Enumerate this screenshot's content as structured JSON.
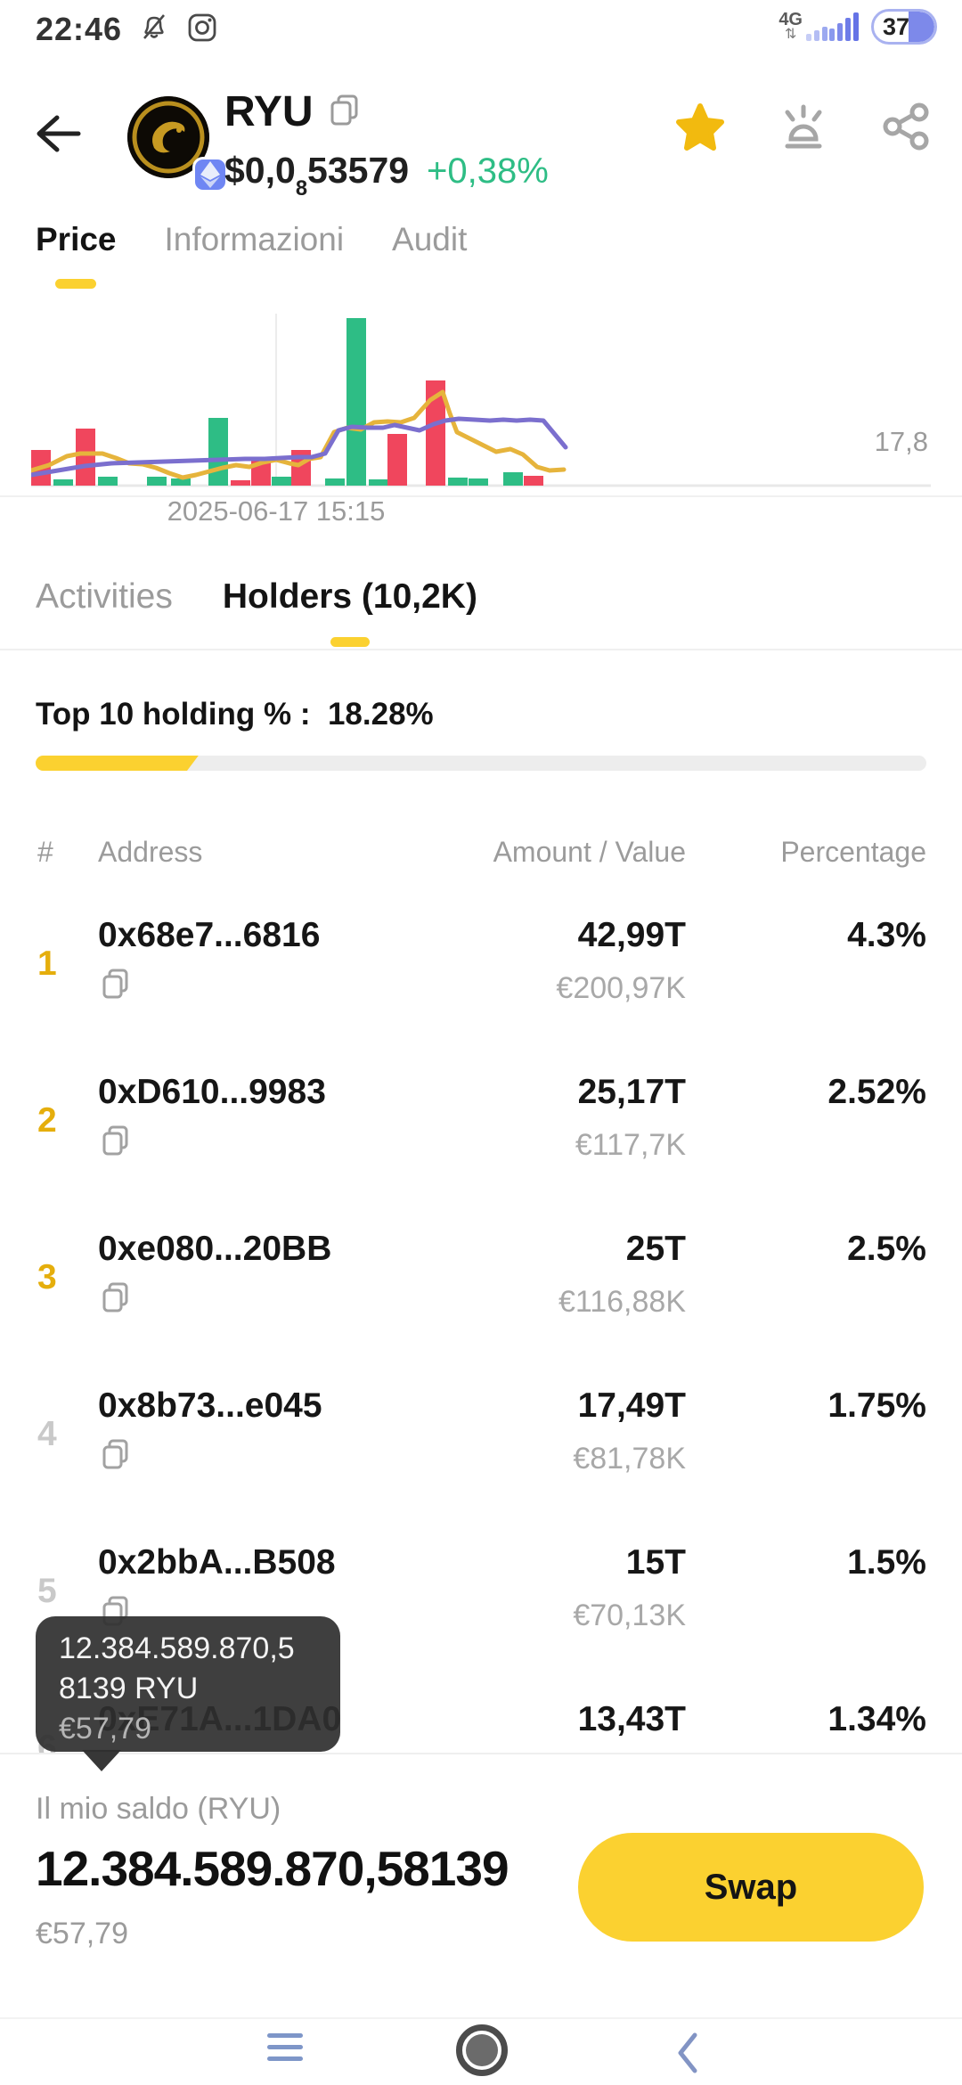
{
  "status_bar": {
    "time": "22:46",
    "network": "4G",
    "battery": "37"
  },
  "header": {
    "token_name": "RYU",
    "price_prefix": "$0,0",
    "price_sub": "8",
    "price_digits": "53579",
    "change": "+0,38%",
    "colors": {
      "change_green": "#2ebd85",
      "star_yellow": "#f2ba0f"
    }
  },
  "tabs": {
    "price": "Price",
    "info": "Informazioni",
    "audit": "Audit"
  },
  "chart_data": {
    "type": "bar",
    "timestamp_label": "2025-06-17 15:15",
    "y_axis_label": "17,8",
    "colors": {
      "red": "#f0465d",
      "green": "#2ebd85",
      "yellow": "#e6b43c",
      "purple": "#7b6fce"
    },
    "bars": [
      [
        0,
        40,
        "r"
      ],
      [
        25,
        7,
        "g"
      ],
      [
        50,
        64,
        "r"
      ],
      [
        75,
        10,
        "g"
      ],
      [
        130,
        10,
        "g"
      ],
      [
        157,
        8,
        "g"
      ],
      [
        199,
        76,
        "g"
      ],
      [
        224,
        6,
        "r"
      ],
      [
        247,
        32,
        "r"
      ],
      [
        270,
        10,
        "g"
      ],
      [
        292,
        40,
        "r"
      ],
      [
        330,
        8,
        "g"
      ],
      [
        354,
        188,
        "g"
      ],
      [
        379,
        7,
        "g"
      ],
      [
        400,
        58,
        "r"
      ],
      [
        443,
        118,
        "r"
      ],
      [
        468,
        9,
        "g"
      ],
      [
        491,
        8,
        "g"
      ],
      [
        530,
        15,
        "g"
      ],
      [
        553,
        11,
        "r"
      ]
    ],
    "lines": {
      "yellow": [
        [
          0,
          176
        ],
        [
          20,
          170
        ],
        [
          40,
          160
        ],
        [
          55,
          157
        ],
        [
          80,
          157
        ],
        [
          95,
          162
        ],
        [
          110,
          168
        ],
        [
          125,
          169
        ],
        [
          140,
          173
        ],
        [
          155,
          179
        ],
        [
          170,
          184
        ],
        [
          185,
          181
        ],
        [
          200,
          177
        ],
        [
          215,
          173
        ],
        [
          230,
          170
        ],
        [
          245,
          172
        ],
        [
          260,
          167
        ],
        [
          275,
          164
        ],
        [
          290,
          168
        ],
        [
          300,
          170
        ],
        [
          312,
          163
        ],
        [
          325,
          161
        ],
        [
          340,
          133
        ],
        [
          355,
          128
        ],
        [
          370,
          130
        ],
        [
          385,
          122
        ],
        [
          400,
          121
        ],
        [
          415,
          122
        ],
        [
          430,
          117
        ],
        [
          448,
          97
        ],
        [
          462,
          88
        ],
        [
          470,
          112
        ],
        [
          478,
          133
        ],
        [
          492,
          140
        ],
        [
          508,
          148
        ],
        [
          522,
          155
        ],
        [
          538,
          152
        ],
        [
          552,
          158
        ],
        [
          568,
          172
        ],
        [
          582,
          176
        ],
        [
          598,
          175
        ]
      ],
      "purple": [
        [
          0,
          181
        ],
        [
          30,
          176
        ],
        [
          60,
          171
        ],
        [
          90,
          168
        ],
        [
          120,
          167
        ],
        [
          150,
          166
        ],
        [
          180,
          165
        ],
        [
          210,
          164
        ],
        [
          240,
          163
        ],
        [
          262,
          163
        ],
        [
          280,
          162
        ],
        [
          300,
          161
        ],
        [
          315,
          161
        ],
        [
          330,
          157
        ],
        [
          345,
          131
        ],
        [
          360,
          127
        ],
        [
          378,
          128
        ],
        [
          395,
          128
        ],
        [
          408,
          125
        ],
        [
          422,
          128
        ],
        [
          436,
          131
        ],
        [
          452,
          124
        ],
        [
          465,
          120
        ],
        [
          480,
          118
        ],
        [
          498,
          119
        ],
        [
          515,
          120
        ],
        [
          530,
          119
        ],
        [
          545,
          120
        ],
        [
          560,
          119
        ],
        [
          575,
          120
        ],
        [
          590,
          138
        ],
        [
          600,
          150
        ]
      ]
    }
  },
  "section_tabs": {
    "activities": "Activities",
    "holders": "Holders (10,2K)"
  },
  "top10": {
    "label": "Top 10 holding % :",
    "value": "18.28%",
    "percent": 18.28,
    "bar_color": "#fbd130"
  },
  "table": {
    "headers": {
      "rank": "#",
      "address": "Address",
      "amount": "Amount / Value",
      "percentage": "Percentage"
    }
  },
  "holders": {
    "rows": [
      {
        "rank": "1",
        "rank_class": "gold",
        "address": "0x68e7...6816",
        "amount": "42,99T",
        "value": "€200,97K",
        "pct": "4.3%"
      },
      {
        "rank": "2",
        "rank_class": "gold",
        "address": "0xD610...9983",
        "amount": "25,17T",
        "value": "€117,7K",
        "pct": "2.52%"
      },
      {
        "rank": "3",
        "rank_class": "gold",
        "address": "0xe080...20BB",
        "amount": "25T",
        "value": "€116,88K",
        "pct": "2.5%"
      },
      {
        "rank": "4",
        "rank_class": "muted",
        "address": "0x8b73...e045",
        "amount": "17,49T",
        "value": "€81,78K",
        "pct": "1.75%"
      },
      {
        "rank": "5",
        "rank_class": "muted",
        "address": "0x2bbA...B508",
        "amount": "15T",
        "value": "€70,13K",
        "pct": "1.5%"
      },
      {
        "rank": "6",
        "rank_class": "muted",
        "address": "0xE71A...1DA0",
        "amount": "13,43T",
        "value": "",
        "pct": "1.34%"
      }
    ]
  },
  "tooltip": {
    "line1": "12.384.589.870,5",
    "line2": "8139 RYU",
    "fiat": "€57,79"
  },
  "balance": {
    "label": "Il mio saldo (RYU)",
    "amount": "12.384.589.870,58139",
    "fiat": "€57,79",
    "swap_label": "Swap"
  }
}
